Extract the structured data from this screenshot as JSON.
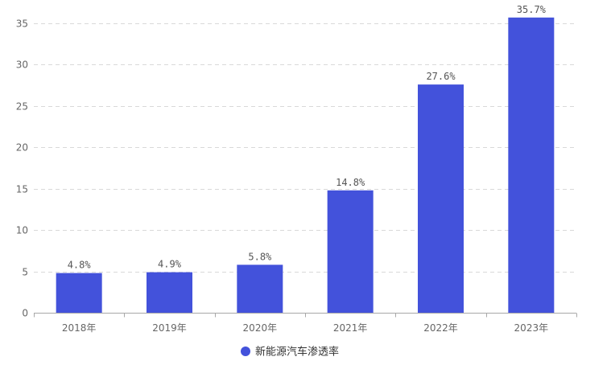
{
  "chart_data": {
    "type": "bar",
    "categories": [
      "2018年",
      "2019年",
      "2020年",
      "2021年",
      "2022年",
      "2023年"
    ],
    "series": [
      {
        "name": "新能源汽车渗透率",
        "values": [
          4.8,
          4.9,
          5.8,
          14.8,
          27.6,
          35.7
        ],
        "labels": [
          "4.8%",
          "4.9%",
          "5.8%",
          "14.8%",
          "27.6%",
          "35.7%"
        ],
        "color": "#4352DB"
      }
    ],
    "y_ticks": [
      0,
      5,
      10,
      15,
      20,
      25,
      30,
      35
    ],
    "ylim": [
      0,
      35
    ],
    "grid": true,
    "legend": "bottom"
  }
}
